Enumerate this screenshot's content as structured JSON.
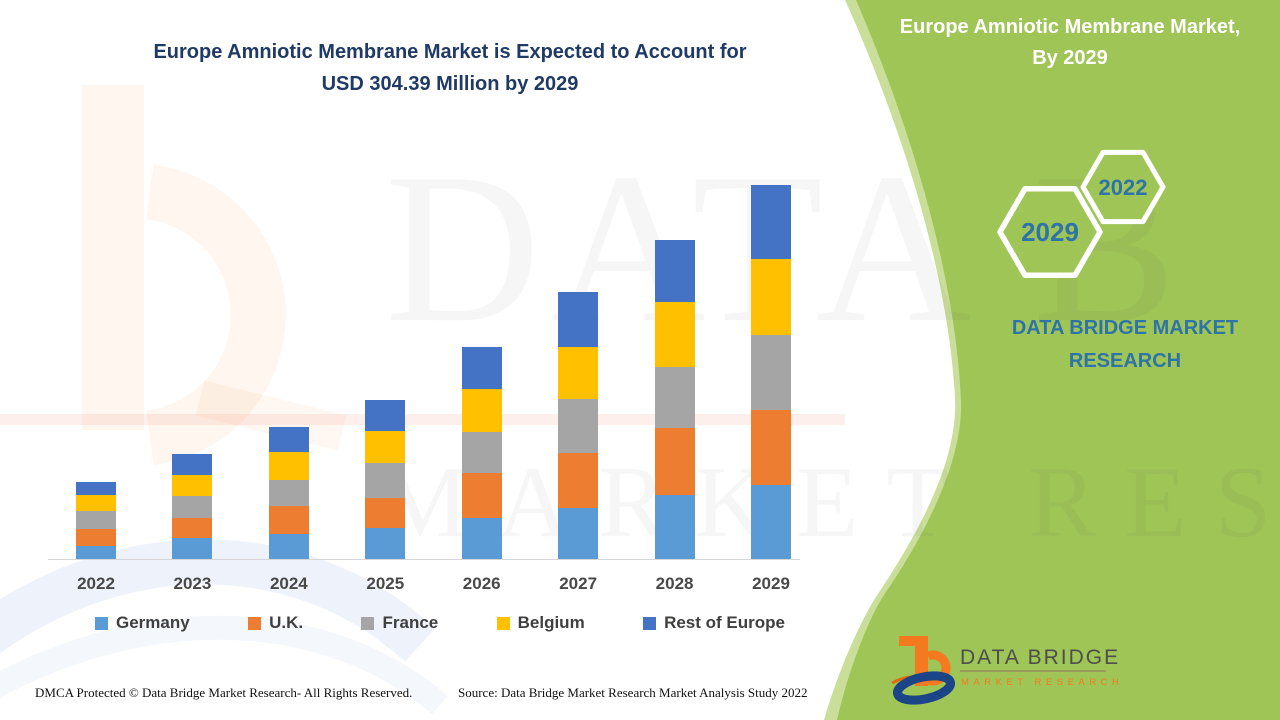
{
  "header": {
    "title_line1": "Europe Amniotic Membrane Market is Expected to Account for",
    "title_line2": "USD 304.39 Million by 2029"
  },
  "side_panel": {
    "title_line1": "Europe Amniotic Membrane Market,",
    "title_line2": "By 2029",
    "hexagon_large_label": "2029",
    "hexagon_small_label": "2022",
    "brand_line1": "DATA BRIDGE MARKET",
    "brand_line2": "RESEARCH"
  },
  "logo": {
    "name": "DATA BRIDGE",
    "subtitle": "MARKET RESEARCH"
  },
  "footer": {
    "left": "DMCA Protected © Data Bridge Market Research- All Rights Reserved.",
    "right": "Source: Data Bridge Market Research Market Analysis Study 2022"
  },
  "watermark": {
    "row1": "DATA B",
    "row2": "MARKET RESEARCH"
  },
  "colors": {
    "panel_green": "#9FC556",
    "panel_green_light": "#C9DE99",
    "navy_title": "#203A66",
    "steel_blue": "#2E74A8",
    "logo_orange": "#F4791F",
    "logo_blue": "#1C4587",
    "axis_gray": "#d6d6d6"
  },
  "chart_data": {
    "type": "bar",
    "stacked": true,
    "title": "Europe Amniotic Membrane Market is Expected to Account for USD 304.39 Million by 2029",
    "unit": "USD Million",
    "xlabel": "",
    "ylabel": "",
    "grid": false,
    "legend_position": "bottom",
    "ylim": [
      0,
      304.39
    ],
    "categories": [
      "2022",
      "2023",
      "2024",
      "2025",
      "2026",
      "2027",
      "2028",
      "2029"
    ],
    "series": [
      {
        "name": "Germany",
        "color": "#5B9BD5",
        "values": [
          11.6,
          17.8,
          20.9,
          25.7,
          33.8,
          42.0,
          52.8,
          60.9
        ]
      },
      {
        "name": "U.K.",
        "color": "#ED7D31",
        "values": [
          13.6,
          16.4,
          23.3,
          24.9,
          36.5,
          44.6,
          54.1,
          60.9
        ]
      },
      {
        "name": "France",
        "color": "#A5A5A5",
        "values": [
          14.9,
          17.6,
          20.9,
          27.8,
          33.3,
          44.1,
          50.1,
          61.3
        ]
      },
      {
        "name": "Belgium",
        "color": "#FFC000",
        "values": [
          12.7,
          17.6,
          23.0,
          26.2,
          35.2,
          42.5,
          52.8,
          61.2
        ]
      },
      {
        "name": "Rest of Europe",
        "color": "#4472C4",
        "values": [
          10.8,
          16.6,
          20.3,
          25.2,
          34.3,
          44.6,
          50.1,
          60.1
        ]
      }
    ],
    "annotations": [
      "Total 2029 = USD 304.39 Million"
    ]
  }
}
